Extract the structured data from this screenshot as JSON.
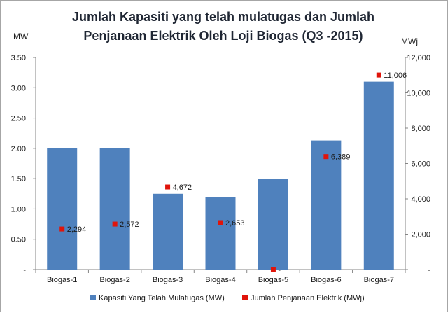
{
  "chart_data": {
    "type": "bar",
    "title_lines": [
      "Jumlah Kapasiti yang telah mulatugas dan Jumlah",
      "Penjanaan Elektrik Oleh Loji Biogas (Q3 -2015)"
    ],
    "left_axis_unit": "MW",
    "right_axis_unit": "MWj",
    "categories": [
      "Biogas-1",
      "Biogas-2",
      "Biogas-3",
      "Biogas-4",
      "Biogas-5",
      "Biogas-6",
      "Biogas-7"
    ],
    "left_ticks": [
      "-",
      "0.50",
      "1.00",
      "1.50",
      "2.00",
      "2.50",
      "3.00",
      "3.50"
    ],
    "right_ticks": [
      "-",
      "2,000",
      "4,000",
      "6,000",
      "8,000",
      "10,000",
      "12,000"
    ],
    "left_ylim": [
      0,
      3.5
    ],
    "right_ylim": [
      0,
      12000
    ],
    "grid": false,
    "legend_position": "bottom",
    "series": [
      {
        "name": "Kapasiti Yang Telah Mulatugas  (MW)",
        "kind": "bar",
        "axis": "left",
        "color": "#4f81bd",
        "values": [
          2.0,
          2.0,
          1.25,
          1.2,
          1.5,
          2.13,
          3.1
        ]
      },
      {
        "name": "Jumlah Penjanaan Elektrik (MWj)",
        "kind": "marker",
        "axis": "right",
        "color": "#e0140a",
        "values": [
          2294,
          2572,
          4672,
          2653,
          0,
          6389,
          11006
        ],
        "labels": [
          "2,294",
          "2,572",
          "4,672",
          "2,653",
          "-",
          "6,389",
          "11,006"
        ]
      }
    ]
  }
}
